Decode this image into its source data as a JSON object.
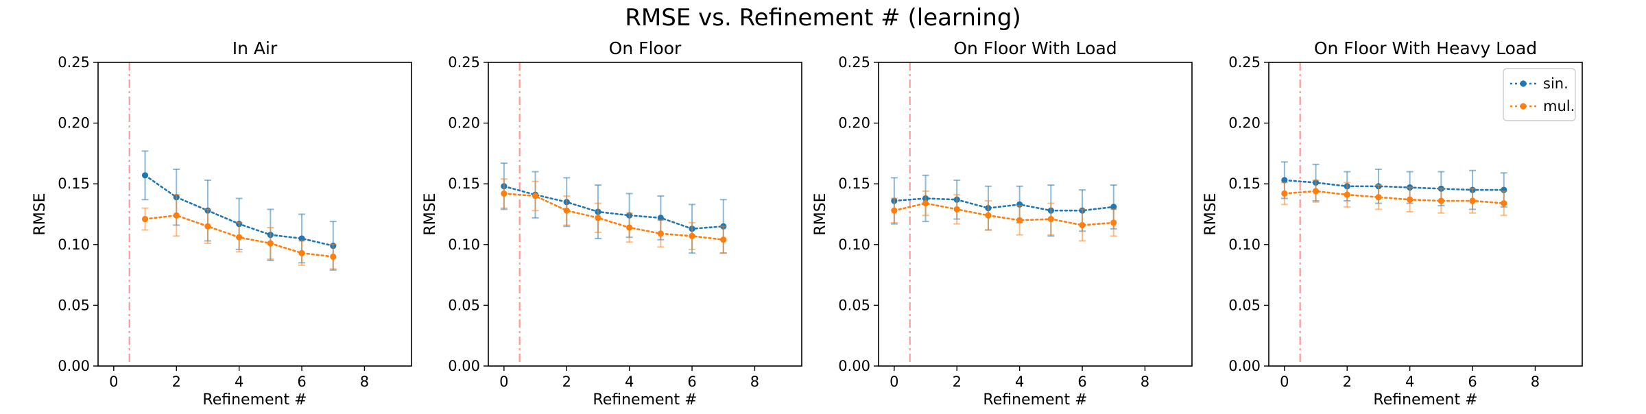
{
  "figure_title": "RMSE vs. Refinement # (learning)",
  "chart_data": [
    {
      "type": "line",
      "title": "In Air",
      "xlabel": "Refinement #",
      "ylabel": "RMSE",
      "xlim": [
        -0.5,
        9.5
      ],
      "ylim": [
        0,
        0.25
      ],
      "xticks": [
        0,
        2,
        4,
        6,
        8
      ],
      "yticks": [
        0.0,
        0.05,
        0.1,
        0.15,
        0.2,
        0.25
      ],
      "vline_x": 0.5,
      "x": [
        1,
        2,
        3,
        4,
        5,
        6,
        7
      ],
      "series": [
        {
          "name": "sin.",
          "color": "#1f77b4",
          "values": [
            0.157,
            0.139,
            0.128,
            0.117,
            0.108,
            0.105,
            0.099
          ],
          "err": [
            0.02,
            0.023,
            0.025,
            0.021,
            0.021,
            0.02,
            0.02
          ]
        },
        {
          "name": "mul.",
          "color": "#ff7f0e",
          "values": [
            0.121,
            0.124,
            0.115,
            0.106,
            0.101,
            0.093,
            0.09
          ],
          "err": [
            0.009,
            0.017,
            0.014,
            0.012,
            0.013,
            0.01,
            0.01
          ]
        }
      ],
      "legend": false
    },
    {
      "type": "line",
      "title": "On Floor",
      "xlabel": "Refinement #",
      "ylabel": "RMSE",
      "xlim": [
        -0.5,
        9.5
      ],
      "ylim": [
        0,
        0.25
      ],
      "xticks": [
        0,
        2,
        4,
        6,
        8
      ],
      "yticks": [
        0.0,
        0.05,
        0.1,
        0.15,
        0.2,
        0.25
      ],
      "vline_x": 0.5,
      "x": [
        0,
        1,
        2,
        3,
        4,
        5,
        6,
        7
      ],
      "series": [
        {
          "name": "sin.",
          "color": "#1f77b4",
          "values": [
            0.148,
            0.141,
            0.135,
            0.127,
            0.124,
            0.122,
            0.113,
            0.115
          ],
          "err": [
            0.019,
            0.019,
            0.02,
            0.022,
            0.018,
            0.018,
            0.02,
            0.022
          ]
        },
        {
          "name": "mul.",
          "color": "#ff7f0e",
          "values": [
            0.142,
            0.14,
            0.128,
            0.122,
            0.114,
            0.109,
            0.107,
            0.104
          ],
          "err": [
            0.012,
            0.012,
            0.012,
            0.012,
            0.012,
            0.011,
            0.011,
            0.011
          ]
        }
      ],
      "legend": false
    },
    {
      "type": "line",
      "title": "On Floor With Load",
      "xlabel": "Refinement #",
      "ylabel": "RMSE",
      "xlim": [
        -0.5,
        9.5
      ],
      "ylim": [
        0,
        0.25
      ],
      "xticks": [
        0,
        2,
        4,
        6,
        8
      ],
      "yticks": [
        0.0,
        0.05,
        0.1,
        0.15,
        0.2,
        0.25
      ],
      "vline_x": 0.5,
      "x": [
        0,
        1,
        2,
        3,
        4,
        5,
        6,
        7
      ],
      "series": [
        {
          "name": "sin.",
          "color": "#1f77b4",
          "values": [
            0.136,
            0.138,
            0.137,
            0.13,
            0.133,
            0.128,
            0.128,
            0.131
          ],
          "err": [
            0.019,
            0.019,
            0.016,
            0.018,
            0.015,
            0.021,
            0.017,
            0.018
          ]
        },
        {
          "name": "mul.",
          "color": "#ff7f0e",
          "values": [
            0.128,
            0.134,
            0.129,
            0.124,
            0.12,
            0.121,
            0.116,
            0.118
          ],
          "err": [
            0.01,
            0.01,
            0.012,
            0.012,
            0.012,
            0.013,
            0.013,
            0.011
          ]
        }
      ],
      "legend": false
    },
    {
      "type": "line",
      "title": "On Floor With Heavy Load",
      "xlabel": "Refinement #",
      "ylabel": "RMSE",
      "xlim": [
        -0.5,
        9.5
      ],
      "ylim": [
        0,
        0.25
      ],
      "xticks": [
        0,
        2,
        4,
        6,
        8
      ],
      "yticks": [
        0.0,
        0.05,
        0.1,
        0.15,
        0.2,
        0.25
      ],
      "vline_x": 0.5,
      "x": [
        0,
        1,
        2,
        3,
        4,
        5,
        6,
        7
      ],
      "series": [
        {
          "name": "sin.",
          "color": "#1f77b4",
          "values": [
            0.153,
            0.151,
            0.148,
            0.148,
            0.147,
            0.146,
            0.145,
            0.145
          ],
          "err": [
            0.015,
            0.015,
            0.012,
            0.014,
            0.013,
            0.014,
            0.016,
            0.014
          ]
        },
        {
          "name": "mul.",
          "color": "#ff7f0e",
          "values": [
            0.142,
            0.144,
            0.141,
            0.139,
            0.137,
            0.136,
            0.136,
            0.134
          ],
          "err": [
            0.009,
            0.009,
            0.01,
            0.01,
            0.01,
            0.01,
            0.01,
            0.01
          ]
        }
      ],
      "legend": true,
      "legend_loc": "upper right"
    }
  ]
}
